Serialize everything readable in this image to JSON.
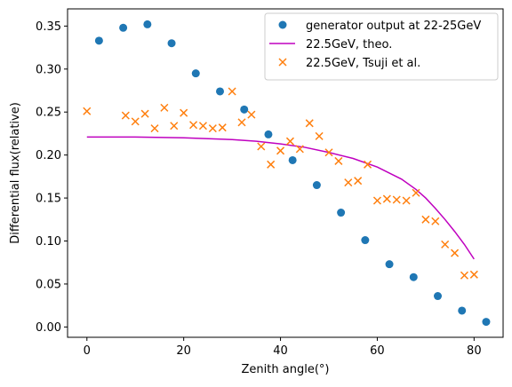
{
  "chart_data": {
    "type": "scatter",
    "xlabel": "Zenith angle($^\\circ$)",
    "xlabel_display": "Zenith angle(°)",
    "ylabel": "Differential flux(relative)",
    "xlim": [
      -4,
      86
    ],
    "ylim": [
      -0.012,
      0.37
    ],
    "x_ticks": [
      0,
      20,
      40,
      60,
      80
    ],
    "y_ticks": [
      0.0,
      0.05,
      0.1,
      0.15,
      0.2,
      0.25,
      0.3,
      0.35
    ],
    "x_tick_labels": [
      "0",
      "20",
      "40",
      "60",
      "80"
    ],
    "y_tick_labels": [
      "0.00",
      "0.05",
      "0.10",
      "0.15",
      "0.20",
      "0.25",
      "0.30",
      "0.35"
    ],
    "grid": false,
    "legend_position": "top-right",
    "series": [
      {
        "name": "generator output at 22-25GeV",
        "kind": "scatter",
        "marker": "circle",
        "color": "#1f77b4",
        "x": [
          2.5,
          7.5,
          12.5,
          17.5,
          22.5,
          27.5,
          32.5,
          37.5,
          42.5,
          47.5,
          52.5,
          57.5,
          62.5,
          67.5,
          72.5,
          77.5,
          82.5
        ],
        "y": [
          0.333,
          0.348,
          0.352,
          0.33,
          0.295,
          0.274,
          0.253,
          0.224,
          0.194,
          0.165,
          0.133,
          0.101,
          0.073,
          0.058,
          0.036,
          0.019,
          0.006
        ]
      },
      {
        "name": "22.5GeV, theo.",
        "kind": "line",
        "color": "#bf00bf",
        "x": [
          0,
          10,
          20,
          30,
          35,
          40,
          45,
          50,
          55,
          60,
          65,
          68,
          70,
          72,
          74,
          76,
          78,
          80
        ],
        "y": [
          0.221,
          0.221,
          0.22,
          0.218,
          0.216,
          0.213,
          0.209,
          0.203,
          0.196,
          0.186,
          0.172,
          0.16,
          0.15,
          0.138,
          0.125,
          0.111,
          0.096,
          0.079
        ]
      },
      {
        "name": "22.5GeV, Tsuji et al.",
        "kind": "scatter",
        "marker": "x",
        "color": "#ff7f0e",
        "x": [
          0,
          8,
          10,
          12,
          14,
          16,
          18,
          20,
          22,
          24,
          26,
          28,
          30,
          32,
          34,
          36,
          38,
          40,
          42,
          44,
          46,
          48,
          50,
          52,
          54,
          56,
          58,
          60,
          62,
          64,
          66,
          68,
          70,
          72,
          74,
          76,
          78,
          80
        ],
        "y": [
          0.251,
          0.246,
          0.239,
          0.248,
          0.231,
          0.255,
          0.234,
          0.249,
          0.235,
          0.234,
          0.231,
          0.232,
          0.274,
          0.238,
          0.247,
          0.21,
          0.189,
          0.205,
          0.216,
          0.207,
          0.237,
          0.222,
          0.203,
          0.193,
          0.168,
          0.17,
          0.189,
          0.147,
          0.149,
          0.148,
          0.147,
          0.156,
          0.125,
          0.123,
          0.096,
          0.086,
          0.06,
          0.061
        ]
      }
    ]
  }
}
